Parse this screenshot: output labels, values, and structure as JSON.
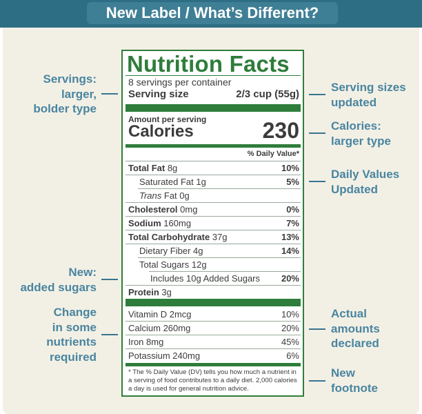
{
  "header": {
    "title": "New Label / What’s Different?"
  },
  "callouts": {
    "servings": [
      "Servings:",
      "larger,",
      "bolder type"
    ],
    "added_sugars": [
      "New:",
      "added sugars"
    ],
    "nutrients": [
      "Change",
      "in some",
      "nutrients",
      "required"
    ],
    "serving_sizes": [
      "Serving sizes",
      "updated"
    ],
    "calories": [
      "Calories:",
      "larger type"
    ],
    "daily_values": [
      "Daily Values",
      "Updated"
    ],
    "actual_amounts": [
      "Actual",
      "amounts",
      "declared"
    ],
    "footnote": [
      "New",
      "footnote"
    ]
  },
  "label": {
    "title": "Nutrition Facts",
    "servings_per_container": "8 servings per container",
    "serving_size_label": "Serving size",
    "serving_size_value": "2/3 cup (55g)",
    "amount_per_serving": "Amount per serving",
    "calories_label": "Calories",
    "calories_value": "230",
    "dv_header": "% Daily Value*",
    "rows": {
      "total_fat": {
        "name": "Total Fat",
        "amount": "8g",
        "dv": "10%"
      },
      "saturated_fat": {
        "name": "Saturated Fat 1g",
        "dv": "5%"
      },
      "trans_fat": {
        "name_italic": "Trans",
        "name_rest": " Fat 0g"
      },
      "cholesterol": {
        "name": "Cholesterol",
        "amount": "0mg",
        "dv": "0%"
      },
      "sodium": {
        "name": "Sodium",
        "amount": "160mg",
        "dv": "7%"
      },
      "total_carb": {
        "name": "Total Carbohydrate",
        "amount": "37g",
        "dv": "13%"
      },
      "fiber": {
        "name": "Dietary Fiber 4g",
        "dv": "14%"
      },
      "total_sugars": {
        "name": "Total Sugars 12g"
      },
      "added_sugars": {
        "name": "Includes 10g Added Sugars",
        "dv": "20%"
      },
      "protein": {
        "name": "Protein",
        "amount": "3g"
      }
    },
    "vitamins": [
      {
        "name": "Vitamin D 2mcg",
        "dv": "10%"
      },
      {
        "name": "Calcium 260mg",
        "dv": "20%"
      },
      {
        "name": "Iron 8mg",
        "dv": "45%"
      },
      {
        "name": "Potassium 240mg",
        "dv": "6%"
      }
    ],
    "footnote": [
      "* The % Daily Value (DV) tells you how much a nutrient in",
      "a serving of food contributes to a daily diet. 2,000 calories",
      "a day is used for general nutrition advice."
    ]
  },
  "colors": {
    "banner": "#2d6e85",
    "label_green": "#2e7d3a",
    "callout_blue": "#4a85a0",
    "panel": "#f2f0e5"
  }
}
